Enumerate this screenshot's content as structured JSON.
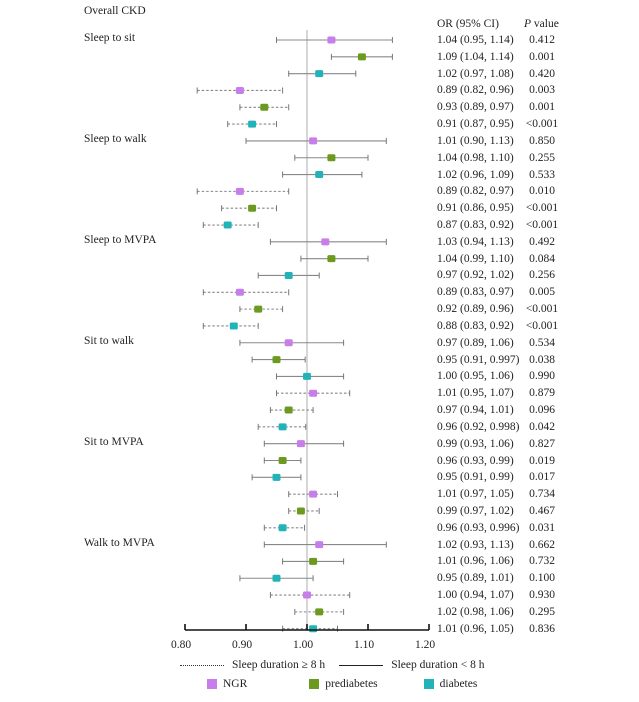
{
  "chart_data": {
    "type": "forest",
    "title": "Overall CKD",
    "column_headers": {
      "or": "OR (95% CI)",
      "p_prefix": "P",
      "p_suffix": " value"
    },
    "xlim": [
      0.8,
      1.2
    ],
    "xticks": [
      "0.80",
      "0.90",
      "1.00",
      "1.10",
      "1.20"
    ],
    "reference_line": 1.0,
    "groups": [
      {
        "label": "Sleep to sit",
        "rows": [
          {
            "series": "NGR",
            "style": "solid",
            "or": 1.04,
            "lo": 0.95,
            "hi": 1.14,
            "text": "1.04 (0.95, 1.14)",
            "p": "0.412"
          },
          {
            "series": "prediabetes",
            "style": "solid",
            "or": 1.09,
            "lo": 1.04,
            "hi": 1.14,
            "text": "1.09 (1.04, 1.14)",
            "p": "0.001"
          },
          {
            "series": "diabetes",
            "style": "solid",
            "or": 1.02,
            "lo": 0.97,
            "hi": 1.08,
            "text": "1.02 (0.97, 1.08)",
            "p": "0.420"
          },
          {
            "series": "NGR",
            "style": "dotted",
            "or": 0.89,
            "lo": 0.82,
            "hi": 0.96,
            "text": "0.89 (0.82, 0.96)",
            "p": "0.003"
          },
          {
            "series": "prediabetes",
            "style": "dotted",
            "or": 0.93,
            "lo": 0.89,
            "hi": 0.97,
            "text": "0.93 (0.89, 0.97)",
            "p": "0.001"
          },
          {
            "series": "diabetes",
            "style": "dotted",
            "or": 0.91,
            "lo": 0.87,
            "hi": 0.95,
            "text": "0.91 (0.87, 0.95)",
            "p": "<0.001"
          }
        ]
      },
      {
        "label": "Sleep to walk",
        "rows": [
          {
            "series": "NGR",
            "style": "solid",
            "or": 1.01,
            "lo": 0.9,
            "hi": 1.13,
            "text": "1.01 (0.90, 1.13)",
            "p": "0.850"
          },
          {
            "series": "prediabetes",
            "style": "solid",
            "or": 1.04,
            "lo": 0.98,
            "hi": 1.1,
            "text": "1.04 (0.98, 1.10)",
            "p": "0.255"
          },
          {
            "series": "diabetes",
            "style": "solid",
            "or": 1.02,
            "lo": 0.96,
            "hi": 1.09,
            "text": "1.02 (0.96, 1.09)",
            "p": "0.533"
          },
          {
            "series": "NGR",
            "style": "dotted",
            "or": 0.89,
            "lo": 0.82,
            "hi": 0.97,
            "text": "0.89 (0.82, 0.97)",
            "p": "0.010"
          },
          {
            "series": "prediabetes",
            "style": "dotted",
            "or": 0.91,
            "lo": 0.86,
            "hi": 0.95,
            "text": "0.91 (0.86, 0.95)",
            "p": "<0.001"
          },
          {
            "series": "diabetes",
            "style": "dotted",
            "or": 0.87,
            "lo": 0.83,
            "hi": 0.92,
            "text": "0.87 (0.83, 0.92)",
            "p": "<0.001"
          }
        ]
      },
      {
        "label": "Sleep to MVPA",
        "rows": [
          {
            "series": "NGR",
            "style": "solid",
            "or": 1.03,
            "lo": 0.94,
            "hi": 1.13,
            "text": "1.03 (0.94, 1.13)",
            "p": "0.492"
          },
          {
            "series": "prediabetes",
            "style": "solid",
            "or": 1.04,
            "lo": 0.99,
            "hi": 1.1,
            "text": "1.04 (0.99, 1.10)",
            "p": "0.084"
          },
          {
            "series": "diabetes",
            "style": "solid",
            "or": 0.97,
            "lo": 0.92,
            "hi": 1.02,
            "text": "0.97 (0.92, 1.02)",
            "p": "0.256"
          },
          {
            "series": "NGR",
            "style": "dotted",
            "or": 0.89,
            "lo": 0.83,
            "hi": 0.97,
            "text": "0.89 (0.83, 0.97)",
            "p": "0.005"
          },
          {
            "series": "prediabetes",
            "style": "dotted",
            "or": 0.92,
            "lo": 0.89,
            "hi": 0.96,
            "text": "0.92 (0.89, 0.96)",
            "p": "<0.001"
          },
          {
            "series": "diabetes",
            "style": "dotted",
            "or": 0.88,
            "lo": 0.83,
            "hi": 0.92,
            "text": "0.88 (0.83, 0.92)",
            "p": "<0.001"
          }
        ]
      },
      {
        "label": "Sit to walk",
        "rows": [
          {
            "series": "NGR",
            "style": "solid",
            "or": 0.97,
            "lo": 0.89,
            "hi": 1.06,
            "text": "0.97 (0.89, 1.06)",
            "p": "0.534"
          },
          {
            "series": "prediabetes",
            "style": "solid",
            "or": 0.95,
            "lo": 0.91,
            "hi": 0.997,
            "text": "0.95 (0.91, 0.997)",
            "p": "0.038"
          },
          {
            "series": "diabetes",
            "style": "solid",
            "or": 1.0,
            "lo": 0.95,
            "hi": 1.06,
            "text": "1.00 (0.95, 1.06)",
            "p": "0.990"
          },
          {
            "series": "NGR",
            "style": "dotted",
            "or": 1.01,
            "lo": 0.95,
            "hi": 1.07,
            "text": "1.01 (0.95, 1.07)",
            "p": "0.879"
          },
          {
            "series": "prediabetes",
            "style": "dotted",
            "or": 0.97,
            "lo": 0.94,
            "hi": 1.01,
            "text": "0.97 (0.94, 1.01)",
            "p": "0.096"
          },
          {
            "series": "diabetes",
            "style": "dotted",
            "or": 0.96,
            "lo": 0.92,
            "hi": 0.998,
            "text": "0.96 (0.92, 0.998)",
            "p": "0.042"
          }
        ]
      },
      {
        "label": "Sit to MVPA",
        "rows": [
          {
            "series": "NGR",
            "style": "solid",
            "or": 0.99,
            "lo": 0.93,
            "hi": 1.06,
            "text": "0.99 (0.93, 1.06)",
            "p": "0.827"
          },
          {
            "series": "prediabetes",
            "style": "solid",
            "or": 0.96,
            "lo": 0.93,
            "hi": 0.99,
            "text": "0.96 (0.93, 0.99)",
            "p": "0.019"
          },
          {
            "series": "diabetes",
            "style": "solid",
            "or": 0.95,
            "lo": 0.91,
            "hi": 0.99,
            "text": "0.95 (0.91, 0.99)",
            "p": "0.017"
          },
          {
            "series": "NGR",
            "style": "dotted",
            "or": 1.01,
            "lo": 0.97,
            "hi": 1.05,
            "text": "1.01 (0.97, 1.05)",
            "p": "0.734"
          },
          {
            "series": "prediabetes",
            "style": "dotted",
            "or": 0.99,
            "lo": 0.97,
            "hi": 1.02,
            "text": "0.99 (0.97, 1.02)",
            "p": "0.467"
          },
          {
            "series": "diabetes",
            "style": "dotted",
            "or": 0.96,
            "lo": 0.93,
            "hi": 0.996,
            "text": "0.96 (0.93, 0.996)",
            "p": "0.031"
          }
        ]
      },
      {
        "label": "Walk to MVPA",
        "rows": [
          {
            "series": "NGR",
            "style": "solid",
            "or": 1.02,
            "lo": 0.93,
            "hi": 1.13,
            "text": "1.02 (0.93, 1.13)",
            "p": "0.662"
          },
          {
            "series": "prediabetes",
            "style": "solid",
            "or": 1.01,
            "lo": 0.96,
            "hi": 1.06,
            "text": "1.01 (0.96, 1.06)",
            "p": "0.732"
          },
          {
            "series": "diabetes",
            "style": "solid",
            "or": 0.95,
            "lo": 0.89,
            "hi": 1.01,
            "text": "0.95 (0.89, 1.01)",
            "p": "0.100"
          },
          {
            "series": "NGR",
            "style": "dotted",
            "or": 1.0,
            "lo": 0.94,
            "hi": 1.07,
            "text": "1.00 (0.94, 1.07)",
            "p": "0.930"
          },
          {
            "series": "prediabetes",
            "style": "dotted",
            "or": 1.02,
            "lo": 0.98,
            "hi": 1.06,
            "text": "1.02 (0.98, 1.06)",
            "p": "0.295"
          },
          {
            "series": "diabetes",
            "style": "dotted",
            "or": 1.01,
            "lo": 0.96,
            "hi": 1.05,
            "text": "1.01 (0.96, 1.05)",
            "p": "0.836"
          }
        ]
      }
    ],
    "series_colors": {
      "NGR": "#c77dea",
      "prediabetes": "#6b9a1f",
      "diabetes": "#22b3b8"
    },
    "legend": {
      "line_styles": [
        {
          "style": "dotted",
          "label": "Sleep duration ≥ 8 h"
        },
        {
          "style": "solid",
          "label": "Sleep duration < 8 h"
        }
      ],
      "series": [
        "NGR",
        "prediabetes",
        "diabetes"
      ],
      "placement": "bottom"
    }
  }
}
